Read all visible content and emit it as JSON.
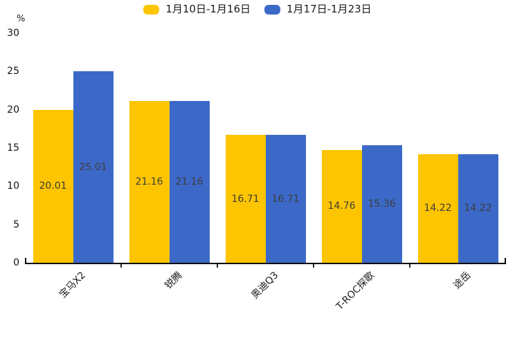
{
  "chart_data": {
    "type": "bar",
    "title": "",
    "unit_label": "%",
    "categories": [
      "宝马X2",
      "锐腾",
      "奥迪Q3",
      "T-ROC探歌",
      "途岳"
    ],
    "series": [
      {
        "name": "1月10日-1月16日",
        "color": "#FCC500",
        "values": [
          20.01,
          21.16,
          16.71,
          14.76,
          14.22
        ]
      },
      {
        "name": "1月17日-1月23日",
        "color": "#3C69C8",
        "values": [
          25.01,
          21.16,
          16.71,
          15.36,
          14.22
        ]
      }
    ],
    "value_labels": [
      "20.01",
      "25.01",
      "21.16",
      "21.16",
      "16.71",
      "16.71",
      "14.76",
      "15.36",
      "14.22",
      "14.22"
    ],
    "ylim": [
      0,
      30
    ],
    "yticks": [
      "0",
      "5",
      "10",
      "15",
      "20",
      "25",
      "30"
    ],
    "grid": false,
    "legend_position": "top",
    "bar_value_color": "#3c3c3c",
    "axis_color": "#000000"
  }
}
